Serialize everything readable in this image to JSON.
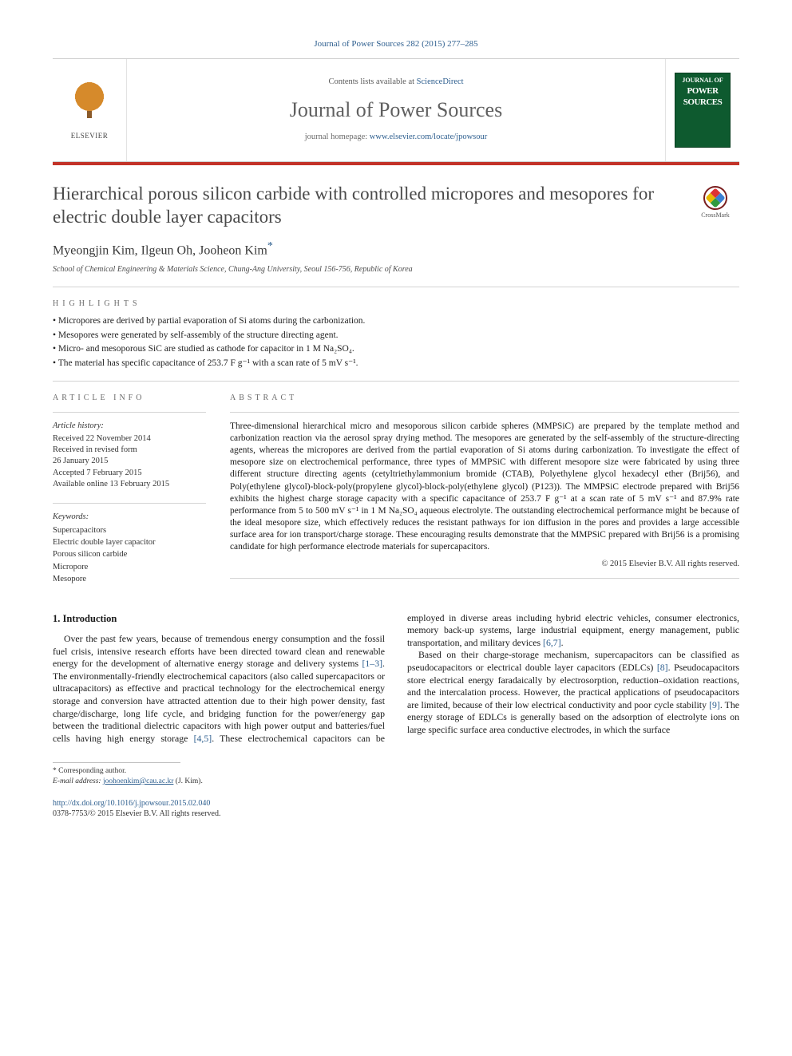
{
  "citation": "Journal of Power Sources 282 (2015) 277–285",
  "masthead": {
    "contents_prefix": "Contents lists available at ",
    "contents_link": "ScienceDirect",
    "journal_name": "Journal of Power Sources",
    "homepage_prefix": "journal homepage: ",
    "homepage_url": "www.elsevier.com/locate/jpowsour",
    "publisher_label": "ELSEVIER",
    "cover_top": "JOURNAL OF",
    "cover_main1": "POWER",
    "cover_main2": "SOURCES"
  },
  "crossmark_label": "CrossMark",
  "title": "Hierarchical porous silicon carbide with controlled micropores and mesopores for electric double layer capacitors",
  "authors_html": "Myeongjin Kim, Ilgeun Oh, Jooheon Kim",
  "corr_mark": "*",
  "affiliation": "School of Chemical Engineering & Materials Science, Chung-Ang University, Seoul 156-756, Republic of Korea",
  "highlights_label": "HIGHLIGHTS",
  "highlights": [
    "Micropores are derived by partial evaporation of Si atoms during the carbonization.",
    "Mesopores were generated by self-assembly of the structure directing agent.",
    "Micro- and mesoporous SiC are studied as cathode for capacitor in 1 M Na₂SO₄.",
    "The material has specific capacitance of 253.7 F g⁻¹ with a scan rate of 5 mV s⁻¹."
  ],
  "info": {
    "heading": "ARTICLE INFO",
    "history_label": "Article history:",
    "history": [
      "Received 22 November 2014",
      "Received in revised form",
      "26 January 2015",
      "Accepted 7 February 2015",
      "Available online 13 February 2015"
    ],
    "keywords_label": "Keywords:",
    "keywords": [
      "Supercapacitors",
      "Electric double layer capacitor",
      "Porous silicon carbide",
      "Micropore",
      "Mesopore"
    ]
  },
  "abstract": {
    "heading": "ABSTRACT",
    "text": "Three-dimensional hierarchical micro and mesoporous silicon carbide spheres (MMPSiC) are prepared by the template method and carbonization reaction via the aerosol spray drying method. The mesopores are generated by the self-assembly of the structure-directing agents, whereas the micropores are derived from the partial evaporation of Si atoms during carbonization. To investigate the effect of mesopore size on electrochemical performance, three types of MMPSiC with different mesopore size were fabricated by using three different structure directing agents (cetyltriethylammonium bromide (CTAB), Polyethylene glycol hexadecyl ether (Brij56), and Poly(ethylene glycol)-block-poly(propylene glycol)-block-poly(ethylene glycol) (P123)). The MMPSiC electrode prepared with Brij56 exhibits the highest charge storage capacity with a specific capacitance of 253.7 F g⁻¹ at a scan rate of 5 mV s⁻¹ and 87.9% rate performance from 5 to 500 mV s⁻¹ in 1 M Na₂SO₄ aqueous electrolyte. The outstanding electrochemical performance might be because of the ideal mesopore size, which effectively reduces the resistant pathways for ion diffusion in the pores and provides a large accessible surface area for ion transport/charge storage. These encouraging results demonstrate that the MMPSiC prepared with Brij56 is a promising candidate for high performance electrode materials for supercapacitors.",
    "copyright": "© 2015 Elsevier B.V. All rights reserved."
  },
  "body": {
    "intro_heading": "1. Introduction",
    "p1a": "Over the past few years, because of tremendous energy consumption and the fossil fuel crisis, intensive research efforts have been directed toward clean and renewable energy for the development of alternative energy storage and delivery systems ",
    "c1": "[1–3]",
    "p1b": ". The environmentally-friendly electrochemical capacitors (also called supercapacitors or ultracapacitors) as effective and practical technology for the electrochemical energy storage and conversion have attracted attention due to their high power density, fast charge/discharge, long life cycle, and bridging function for the power/energy gap between the traditional dielectric capacitors with high power output and batteries/fuel cells having high energy storage ",
    "c2": "[4,5]",
    "p1c": ". These electrochemical capacitors can be employed in diverse areas including hybrid electric vehicles, consumer electronics, memory back-up systems, large industrial equipment, energy management, public transportation, and military devices ",
    "c3": "[6,7]",
    "p1d": ".",
    "p2a": "Based on their charge-storage mechanism, supercapacitors can be classified as pseudocapacitors or electrical double layer capacitors (EDLCs) ",
    "c4": "[8]",
    "p2b": ". Pseudocapacitors store electrical energy faradaically by electrosorption, reduction–oxidation reactions, and the intercalation process. However, the practical applications of pseudocapacitors are limited, because of their low electrical conductivity and poor cycle stability ",
    "c5": "[9]",
    "p2c": ". The energy storage of EDLCs is generally based on the adsorption of electrolyte ions on large specific surface area conductive electrodes, in which the surface"
  },
  "footnotes": {
    "corr": "* Corresponding author.",
    "email_label": "E-mail address:",
    "email": "joohoenkim@cau.ac.kr",
    "email_who": "(J. Kim)."
  },
  "doi": {
    "url": "http://dx.doi.org/10.1016/j.jpowsour.2015.02.040",
    "issn_line": "0378-7753/© 2015 Elsevier B.V. All rights reserved."
  },
  "colors": {
    "link": "#2e5f8f",
    "rule_red": "#c23328",
    "cover_green": "#0e5a2f"
  }
}
